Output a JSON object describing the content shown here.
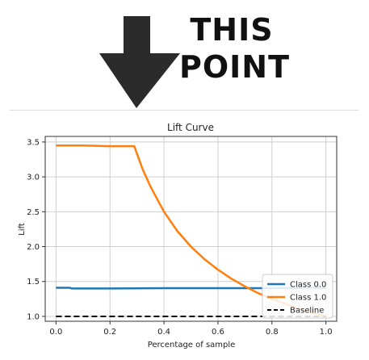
{
  "meme": {
    "caption_line1": "THIS",
    "caption_line2": "POINT",
    "arrow_color": "#2b2b2b"
  },
  "chart_data": {
    "type": "line",
    "title": "Lift Curve",
    "xlabel": "Percentage of sample",
    "ylabel": "Lift",
    "xlim": [
      -0.04,
      1.04
    ],
    "ylim": [
      0.93,
      3.58
    ],
    "xticks": [
      0.0,
      0.2,
      0.4,
      0.6,
      0.8,
      1.0
    ],
    "xtick_labels": [
      "0.0",
      "0.2",
      "0.4",
      "0.6",
      "0.8",
      "1.0"
    ],
    "yticks": [
      1.0,
      1.5,
      2.0,
      2.5,
      3.0,
      3.5
    ],
    "ytick_labels": [
      "1.0",
      "1.5",
      "2.0",
      "2.5",
      "3.0",
      "3.5"
    ],
    "grid": true,
    "legend_position": "lower-right",
    "series": [
      {
        "name": "Class 0.0",
        "color": "#1f77b4",
        "style": "solid",
        "x": [
          0.0,
          0.05,
          0.06,
          0.2,
          0.4,
          0.6,
          0.8,
          0.95,
          1.0
        ],
        "y": [
          1.41,
          1.41,
          1.4,
          1.4,
          1.405,
          1.405,
          1.405,
          1.41,
          1.41
        ]
      },
      {
        "name": "Class 1.0",
        "color": "#ff7f0e",
        "style": "solid",
        "x": [
          0.0,
          0.1,
          0.2,
          0.29,
          0.32,
          0.35,
          0.4,
          0.45,
          0.5,
          0.55,
          0.6,
          0.65,
          0.7,
          0.75,
          0.8,
          0.85,
          0.9,
          0.95,
          1.0
        ],
        "y": [
          3.45,
          3.45,
          3.44,
          3.44,
          3.12,
          2.86,
          2.5,
          2.22,
          2.0,
          1.82,
          1.67,
          1.54,
          1.43,
          1.33,
          1.25,
          1.18,
          1.11,
          1.05,
          1.0
        ]
      },
      {
        "name": "Baseline",
        "color": "#000000",
        "style": "dashed",
        "x": [
          0.0,
          1.0
        ],
        "y": [
          1.0,
          1.0
        ]
      }
    ]
  }
}
